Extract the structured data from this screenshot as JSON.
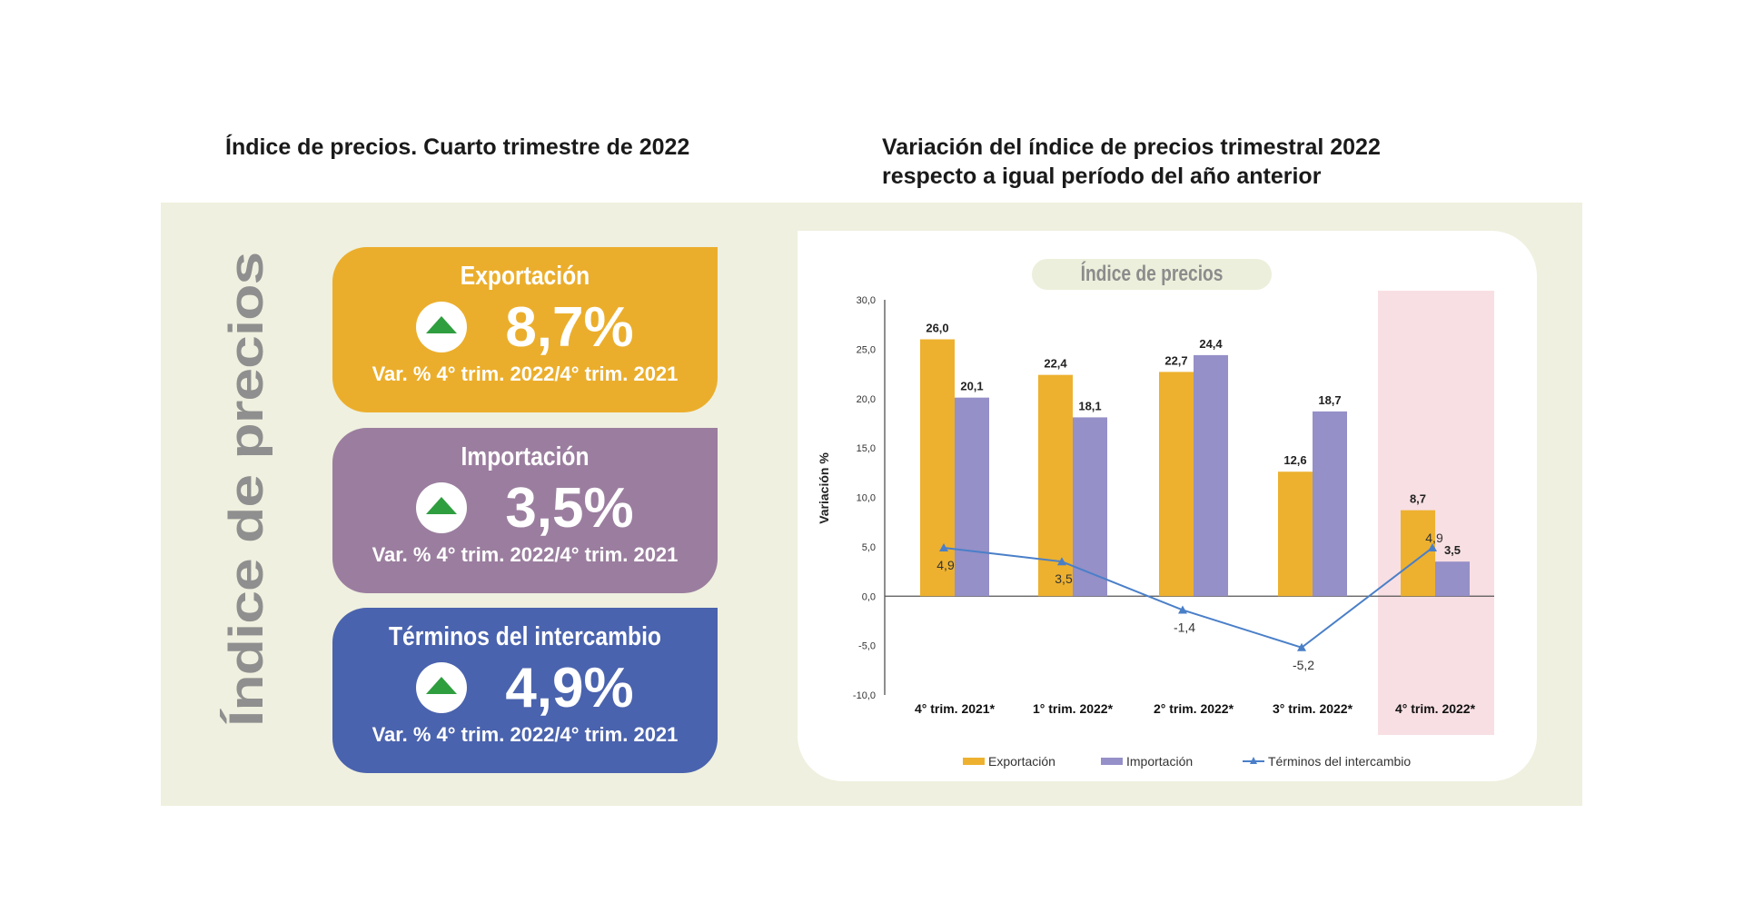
{
  "header": {
    "left_title": "Índice de precios. Cuarto trimestre de 2022",
    "right_title_line1": "Variación del índice de precios trimestral 2022",
    "right_title_line2": "respecto a igual período del año anterior"
  },
  "side_title": "Índice de precios",
  "cards": [
    {
      "name": "Exportación",
      "value": "8,7%",
      "subtitle": "Var. % 4° trim. 2022/4° trim. 2021",
      "color": "#ebae2c",
      "icon": "arrow-up-icon"
    },
    {
      "name": "Importación",
      "value": "3,5%",
      "subtitle": "Var. % 4° trim. 2022/4° trim. 2021",
      "color": "#9b7e9f",
      "icon": "arrow-up-icon"
    },
    {
      "name": "Términos del intercambio",
      "value": "4,9%",
      "subtitle": "Var. % 4° trim. 2022/4° trim. 2021",
      "color": "#4a63ae",
      "icon": "arrow-up-icon"
    }
  ],
  "chart_data": {
    "type": "bar",
    "title": "Índice de precios",
    "ylabel": "Variación %",
    "xlabel": "",
    "ylim": [
      -10,
      30
    ],
    "yticks": [
      "30,0",
      "25,0",
      "20,0",
      "15,0",
      "10,0",
      "5,0",
      "0,0",
      "-5,0",
      "-10,0"
    ],
    "categories": [
      "4° trim. 2021*",
      "1° trim. 2022*",
      "2° trim. 2022*",
      "3° trim. 2022*",
      "4° trim. 2022*"
    ],
    "highlight_category": "4° trim. 2022*",
    "legend_position": "bottom",
    "grid": false,
    "series": [
      {
        "name": "Exportación",
        "kind": "bar",
        "color": "#edb12f",
        "values": [
          26.0,
          22.4,
          22.7,
          12.6,
          8.7
        ],
        "labels": [
          "26,0",
          "22,4",
          "22,7",
          "12,6",
          "8,7"
        ]
      },
      {
        "name": "Importación",
        "kind": "bar",
        "color": "#9590c8",
        "values": [
          20.1,
          18.1,
          24.4,
          18.7,
          3.5
        ],
        "labels": [
          "20,1",
          "18,1",
          "24,4",
          "18,7",
          "3,5"
        ]
      },
      {
        "name": "Términos del intercambio",
        "kind": "line",
        "color": "#4a7fc8",
        "values": [
          4.9,
          3.5,
          -1.4,
          -5.2,
          4.9
        ],
        "labels": [
          "4,9",
          "3,5",
          "-1,4",
          "-5,2",
          "4,9"
        ]
      }
    ]
  }
}
